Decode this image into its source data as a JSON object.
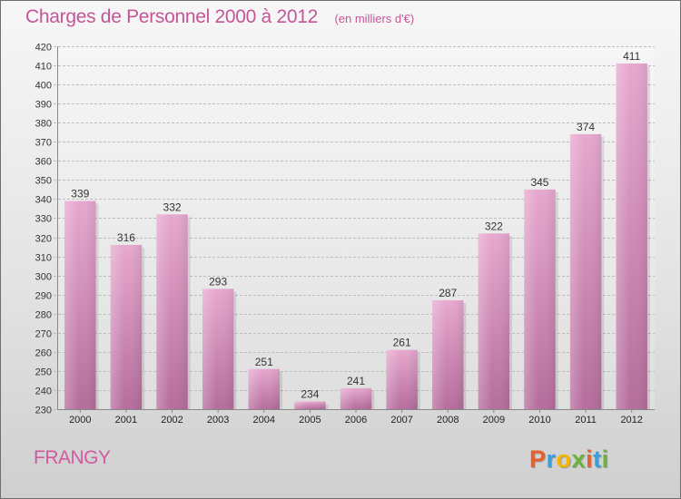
{
  "header": {
    "title": "Charges de Personnel 2000 à 2012",
    "unit": "(en milliers d'€)"
  },
  "footer": {
    "commune": "FRANGY",
    "logo": "Proxiti",
    "logo_colors": [
      "#e8612c",
      "#3b9fd8",
      "#f5b400",
      "#6bb43a",
      "#e8612c",
      "#3b9fd8",
      "#6bb43a"
    ]
  },
  "chart_data": {
    "type": "bar",
    "categories": [
      "2000",
      "2001",
      "2002",
      "2003",
      "2004",
      "2005",
      "2006",
      "2007",
      "2008",
      "2009",
      "2010",
      "2011",
      "2012"
    ],
    "values": [
      339,
      316,
      332,
      293,
      251,
      234,
      241,
      261,
      287,
      322,
      345,
      374,
      411
    ],
    "data_labels": [
      "339",
      "316",
      "332",
      "293",
      "251",
      "234",
      "241",
      "261",
      "287",
      "322",
      "345",
      "374",
      "411"
    ],
    "ylim": [
      230,
      420
    ],
    "yticks": [
      230,
      240,
      250,
      260,
      270,
      280,
      290,
      300,
      310,
      320,
      330,
      340,
      350,
      360,
      370,
      380,
      390,
      400,
      410,
      420
    ],
    "grid": true,
    "bar_color": "#d58bb8",
    "title": "Charges de Personnel 2000 à 2012",
    "xlabel": "",
    "ylabel": ""
  }
}
